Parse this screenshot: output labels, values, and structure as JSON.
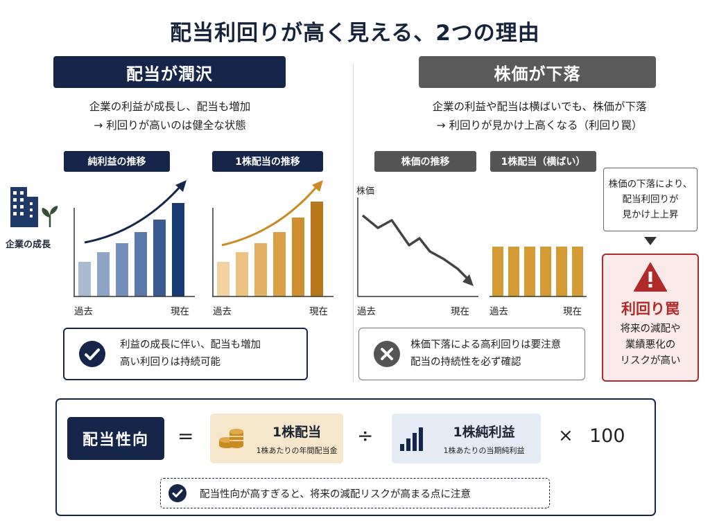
{
  "title": "配当利回りが高く見える、2つの理由",
  "left": {
    "header": "配当が潤沢",
    "desc_line1": "企業の利益が成長し、配当も増加",
    "desc_line2": "→ 利回りが高いのは健全な状態",
    "company_label": "企業の成長",
    "chart1_title": "純利益の推移",
    "chart2_title": "1株配当の推移",
    "axis_past": "過去",
    "axis_now": "現在",
    "check_line1": "利益の成長に伴い、配当も増加",
    "check_line2": "高い利回りは持続可能"
  },
  "right": {
    "header": "株価が下落",
    "desc_line1": "企業の利益や配当は横ばいでも、株価が下落",
    "desc_line2": "→ 利回りが見かけ上高くなる（利回り罠）",
    "chart1_title": "株価の推移",
    "chart1_ylabel": "株価",
    "chart2_title": "1株配当（横ばい）",
    "axis_past": "過去",
    "axis_now": "現在",
    "note_line1": "株価の下落により、",
    "note_line2": "配当利回りが",
    "note_line3": "見かけ上上昇",
    "trap_title": "利回り罠",
    "trap_line1": "将来の減配や",
    "trap_line2": "業績悪化の",
    "trap_line3": "リスクが高い",
    "x_line1": "株価下落による高利回りは要注意",
    "x_line2": "配当の持続性を必ず確認"
  },
  "formula": {
    "label": "配当性向",
    "equals": "=",
    "numerator_title": "1株配当",
    "numerator_sub": "1株あたりの年間配当金",
    "divide": "÷",
    "denominator_title": "1株純利益",
    "denominator_sub": "1株あたりの当期純利益",
    "times": "×",
    "hundred": "100",
    "note": "配当性向が高すぎると、将来の減配リスクが高まる点に注意"
  },
  "colors": {
    "navy": "#16264a",
    "gray": "#555555",
    "gold": "#c98a22",
    "red": "#b02a2a",
    "blue_bar_light": "#a9bad3",
    "blue_bar_dark": "#173a74"
  },
  "chart_data": [
    {
      "type": "bar",
      "title": "純利益の推移",
      "categories": [
        "過去",
        "",
        "",
        "",
        "",
        "現在"
      ],
      "values": [
        1.8,
        2.3,
        2.8,
        3.4,
        4.1,
        5.0
      ],
      "trend": "increasing"
    },
    {
      "type": "bar",
      "title": "1株配当の推移",
      "categories": [
        "過去",
        "",
        "",
        "",
        "",
        "現在"
      ],
      "values": [
        1.8,
        2.3,
        2.8,
        3.4,
        4.1,
        5.0
      ],
      "trend": "increasing"
    },
    {
      "type": "line",
      "title": "株価の推移",
      "ylabel": "株価",
      "x": [
        "過去",
        "",
        "",
        "",
        "",
        "",
        "",
        "",
        "現在"
      ],
      "y": [
        100,
        84,
        92,
        70,
        76,
        57,
        46,
        38,
        20
      ],
      "trend": "decreasing"
    },
    {
      "type": "bar",
      "title": "1株配当（横ばい）",
      "categories": [
        "過去",
        "",
        "",
        "",
        "",
        "現在"
      ],
      "values": [
        3,
        3,
        3,
        3,
        3,
        3
      ],
      "trend": "flat"
    }
  ]
}
